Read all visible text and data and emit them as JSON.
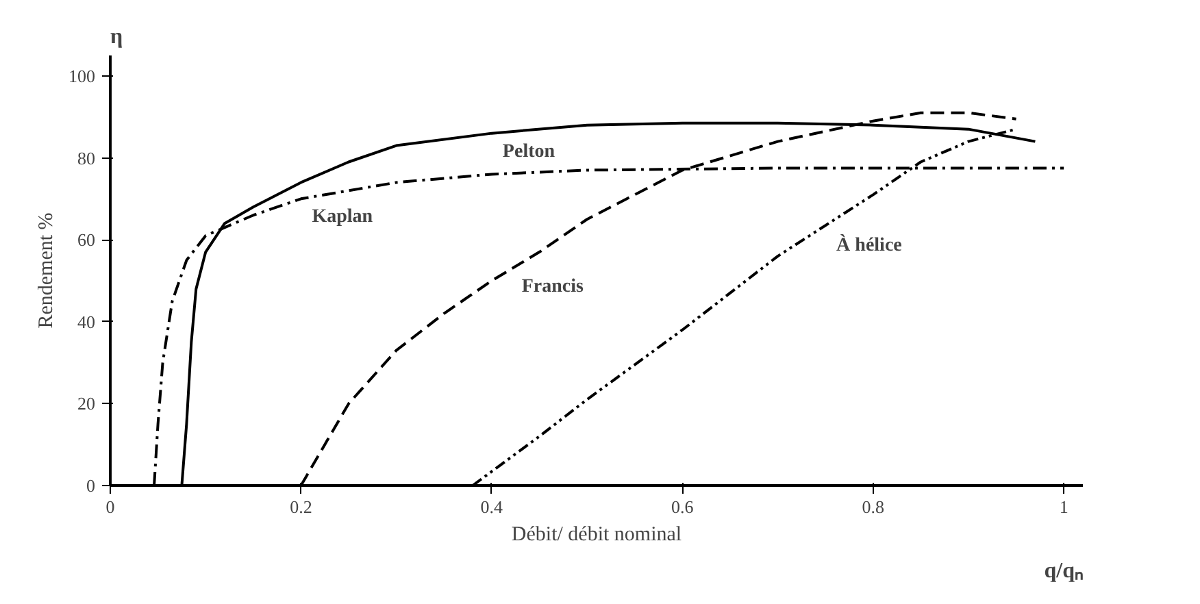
{
  "chart_data": {
    "type": "line",
    "xlabel": "Débit/ débit nominal",
    "ylabel": "Rendement %",
    "xlim": [
      0,
      1.02
    ],
    "ylim": [
      0,
      105
    ],
    "xticks": [
      {
        "value": 0,
        "label": "0"
      },
      0.2,
      0.4,
      0.6,
      0.8,
      1
    ],
    "yticks": [
      0,
      20,
      40,
      60,
      80,
      100
    ],
    "grid": false,
    "series": [
      {
        "color": "#000000",
        "line_style": "solid",
        "x": [
          0.075,
          0.08,
          0.085,
          0.09,
          0.1,
          0.12,
          0.15,
          0.2,
          0.25,
          0.3,
          0.4,
          0.5,
          0.6,
          0.7,
          0.8,
          0.9,
          0.97
        ],
        "values": [
          0,
          15,
          35,
          48,
          57,
          64,
          68,
          74,
          79,
          83,
          86,
          88,
          88.5,
          88.5,
          88,
          87,
          84
        ]
      },
      {
        "color": "#000000",
        "line_style": "dashdot",
        "x": [
          0.046,
          0.05,
          0.055,
          0.065,
          0.08,
          0.1,
          0.15,
          0.2,
          0.3,
          0.4,
          0.5,
          0.7,
          1.0
        ],
        "values": [
          0,
          15,
          30,
          45,
          55,
          61,
          66,
          70,
          74,
          76,
          77,
          77.5,
          77.5
        ]
      },
      {
        "color": "#000000",
        "line_style": "dashed",
        "x": [
          0.2,
          0.25,
          0.3,
          0.35,
          0.4,
          0.45,
          0.5,
          0.55,
          0.6,
          0.7,
          0.8,
          0.85,
          0.9,
          0.95
        ],
        "values": [
          0,
          20,
          33,
          42,
          50,
          57,
          65,
          71,
          77,
          84,
          89,
          91,
          91,
          89.5
        ]
      },
      {
        "color": "#000000",
        "line_style": "dashdotdot",
        "x": [
          0.38,
          0.45,
          0.5,
          0.6,
          0.7,
          0.8,
          0.85,
          0.9,
          0.95
        ],
        "values": [
          0,
          12,
          21,
          38,
          56,
          71,
          79,
          84,
          87
        ]
      }
    ],
    "annotations": [
      {
        "text": "Pelton",
        "x": 0.4,
        "y": 86
      },
      {
        "text": "Kaplan",
        "x": 0.2,
        "y": 70
      },
      {
        "text": "Francis",
        "x": 0.42,
        "y": 53
      },
      {
        "text": "À hélice",
        "x": 0.75,
        "y": 63
      },
      "η",
      "q/qₙ"
    ]
  }
}
